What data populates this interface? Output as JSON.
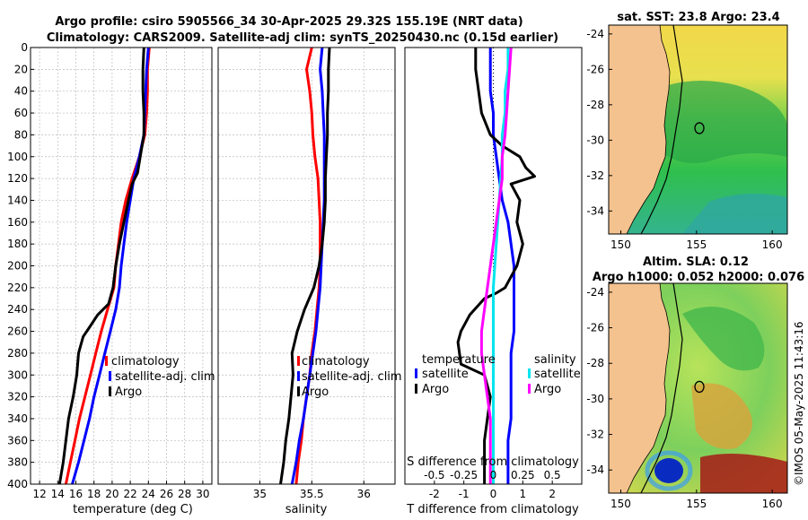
{
  "header": {
    "title_line1": "Argo profile: csiro 5905566_34 30-Apr-2025 29.32S 155.19E (NRT data)",
    "title_line2": "Climatology: CARS2009. Satellite-adj clim: synTS_20250430.nc (0.15d earlier)"
  },
  "colors": {
    "climatology": "#ff0000",
    "satellite": "#0000ff",
    "argo": "#000000",
    "sat_salinity": "#00e5ee",
    "argo_salinity": "#ff00ff"
  },
  "chart_data": [
    {
      "type": "line",
      "name": "temperature-profile",
      "xlabel": "temperature (deg C)",
      "ylabel": "",
      "xlim": [
        11,
        31
      ],
      "ylim": [
        400,
        0
      ],
      "xticks": [
        12,
        14,
        16,
        18,
        20,
        22,
        24,
        26,
        28,
        30
      ],
      "yticks": [
        0,
        20,
        40,
        60,
        80,
        100,
        120,
        140,
        160,
        180,
        200,
        220,
        240,
        260,
        280,
        300,
        320,
        340,
        360,
        380,
        400
      ],
      "series": [
        {
          "name": "climatology",
          "color": "#ff0000",
          "points": [
            [
              24.1,
              0
            ],
            [
              23.9,
              20
            ],
            [
              23.9,
              40
            ],
            [
              23.8,
              60
            ],
            [
              23.6,
              80
            ],
            [
              23,
              100
            ],
            [
              22.2,
              120
            ],
            [
              21.5,
              140
            ],
            [
              21,
              160
            ],
            [
              20.7,
              180
            ],
            [
              20.4,
              200
            ],
            [
              20.2,
              220
            ],
            [
              19.5,
              240
            ],
            [
              18.8,
              260
            ],
            [
              18.2,
              280
            ],
            [
              17.6,
              300
            ],
            [
              17,
              320
            ],
            [
              16.4,
              340
            ],
            [
              15.9,
              360
            ],
            [
              15.4,
              380
            ],
            [
              14.9,
              400
            ]
          ]
        },
        {
          "name": "satellite-adj. clim",
          "color": "#0000ff",
          "points": [
            [
              24,
              0
            ],
            [
              23.8,
              20
            ],
            [
              23.7,
              40
            ],
            [
              23.6,
              60
            ],
            [
              23.5,
              80
            ],
            [
              23,
              100
            ],
            [
              22.4,
              120
            ],
            [
              22,
              140
            ],
            [
              21.6,
              160
            ],
            [
              21.3,
              180
            ],
            [
              21,
              200
            ],
            [
              20.8,
              220
            ],
            [
              20.4,
              240
            ],
            [
              19.8,
              260
            ],
            [
              19.2,
              280
            ],
            [
              18.6,
              300
            ],
            [
              18,
              320
            ],
            [
              17.5,
              340
            ],
            [
              16.9,
              360
            ],
            [
              16.3,
              380
            ],
            [
              15.6,
              400
            ]
          ]
        },
        {
          "name": "Argo",
          "color": "#000000",
          "points": [
            [
              23.5,
              0
            ],
            [
              23.4,
              20
            ],
            [
              23.4,
              40
            ],
            [
              23.5,
              60
            ],
            [
              23.5,
              80
            ],
            [
              23.1,
              100
            ],
            [
              22.8,
              115
            ],
            [
              22.2,
              125
            ],
            [
              21.8,
              140
            ],
            [
              21.3,
              160
            ],
            [
              20.8,
              180
            ],
            [
              20.4,
              200
            ],
            [
              20.1,
              220
            ],
            [
              19.6,
              235
            ],
            [
              18.4,
              245
            ],
            [
              17.6,
              255
            ],
            [
              16.8,
              265
            ],
            [
              16.3,
              280
            ],
            [
              16.1,
              300
            ],
            [
              15.7,
              320
            ],
            [
              15.2,
              340
            ],
            [
              14.9,
              360
            ],
            [
              14.6,
              380
            ],
            [
              14.2,
              400
            ]
          ]
        }
      ],
      "legend": [
        "climatology",
        "satellite-adj. clim",
        "Argo"
      ]
    },
    {
      "type": "line",
      "name": "salinity-profile",
      "xlabel": "salinity",
      "ylabel": "",
      "xlim": [
        34.6,
        36.3
      ],
      "ylim": [
        400,
        0
      ],
      "xticks": [
        35,
        35.5,
        36
      ],
      "series": [
        {
          "name": "climatology",
          "color": "#ff0000",
          "points": [
            [
              35.5,
              0
            ],
            [
              35.45,
              20
            ],
            [
              35.48,
              40
            ],
            [
              35.5,
              60
            ],
            [
              35.51,
              80
            ],
            [
              35.53,
              100
            ],
            [
              35.56,
              120
            ],
            [
              35.57,
              140
            ],
            [
              35.58,
              160
            ],
            [
              35.58,
              180
            ],
            [
              35.58,
              200
            ],
            [
              35.57,
              220
            ],
            [
              35.55,
              240
            ],
            [
              35.53,
              260
            ],
            [
              35.5,
              280
            ],
            [
              35.48,
              300
            ],
            [
              35.45,
              320
            ],
            [
              35.42,
              340
            ],
            [
              35.4,
              360
            ],
            [
              35.37,
              380
            ],
            [
              35.35,
              400
            ]
          ]
        },
        {
          "name": "satellite-adj. clim",
          "color": "#0000ff",
          "points": [
            [
              35.6,
              0
            ],
            [
              35.58,
              20
            ],
            [
              35.6,
              40
            ],
            [
              35.61,
              60
            ],
            [
              35.62,
              80
            ],
            [
              35.62,
              100
            ],
            [
              35.62,
              120
            ],
            [
              35.62,
              140
            ],
            [
              35.61,
              160
            ],
            [
              35.6,
              180
            ],
            [
              35.59,
              200
            ],
            [
              35.58,
              220
            ],
            [
              35.56,
              240
            ],
            [
              35.54,
              260
            ],
            [
              35.51,
              280
            ],
            [
              35.48,
              300
            ],
            [
              35.45,
              320
            ],
            [
              35.42,
              340
            ],
            [
              35.38,
              360
            ],
            [
              35.35,
              380
            ],
            [
              35.31,
              400
            ]
          ]
        },
        {
          "name": "Argo",
          "color": "#000000",
          "points": [
            [
              35.67,
              0
            ],
            [
              35.66,
              20
            ],
            [
              35.66,
              40
            ],
            [
              35.65,
              60
            ],
            [
              35.65,
              80
            ],
            [
              35.64,
              100
            ],
            [
              35.63,
              120
            ],
            [
              35.63,
              140
            ],
            [
              35.62,
              160
            ],
            [
              35.6,
              180
            ],
            [
              35.57,
              200
            ],
            [
              35.52,
              220
            ],
            [
              35.43,
              240
            ],
            [
              35.36,
              260
            ],
            [
              35.31,
              280
            ],
            [
              35.32,
              300
            ],
            [
              35.3,
              320
            ],
            [
              35.28,
              340
            ],
            [
              35.25,
              360
            ],
            [
              35.23,
              380
            ],
            [
              35.2,
              400
            ]
          ]
        }
      ],
      "legend": [
        "climatology",
        "satellite-adj. clim",
        "Argo"
      ]
    },
    {
      "type": "line",
      "name": "difference-profile",
      "xlabel": "T difference from climatology",
      "xlabel_top": "S difference from climatology",
      "xlim": [
        -3,
        3
      ],
      "ylim": [
        400,
        0
      ],
      "xticks": [
        -2,
        -1,
        0,
        1,
        2
      ],
      "s_ticks": [
        {
          "label": "-0.5",
          "t_pos": -2
        },
        {
          "label": "-0.25",
          "t_pos": -1
        },
        {
          "label": "0",
          "t_pos": 0
        },
        {
          "label": "0.25",
          "t_pos": 1
        },
        {
          "label": "0.5",
          "t_pos": 2
        }
      ],
      "series": [
        {
          "name": "temperature satellite",
          "color": "#0000ff",
          "points": [
            [
              -0.1,
              0
            ],
            [
              -0.1,
              20
            ],
            [
              -0.1,
              40
            ],
            [
              0,
              60
            ],
            [
              0,
              80
            ],
            [
              0.1,
              100
            ],
            [
              0.2,
              120
            ],
            [
              0.3,
              140
            ],
            [
              0.5,
              160
            ],
            [
              0.6,
              180
            ],
            [
              0.7,
              200
            ],
            [
              0.7,
              220
            ],
            [
              0.7,
              240
            ],
            [
              0.7,
              260
            ],
            [
              0.6,
              280
            ],
            [
              0.6,
              300
            ],
            [
              0.6,
              320
            ],
            [
              0.6,
              340
            ],
            [
              0.5,
              360
            ],
            [
              0.5,
              380
            ],
            [
              0.5,
              400
            ]
          ]
        },
        {
          "name": "temperature Argo",
          "color": "#000000",
          "points": [
            [
              -0.6,
              0
            ],
            [
              -0.6,
              20
            ],
            [
              -0.5,
              40
            ],
            [
              -0.4,
              60
            ],
            [
              -0.1,
              80
            ],
            [
              0.3,
              90
            ],
            [
              0.9,
              100
            ],
            [
              1.1,
              110
            ],
            [
              1.4,
              118
            ],
            [
              0.6,
              125
            ],
            [
              0.9,
              140
            ],
            [
              0.8,
              160
            ],
            [
              1.0,
              180
            ],
            [
              0.8,
              200
            ],
            [
              0.6,
              210
            ],
            [
              0.4,
              220
            ],
            [
              0.1,
              225
            ],
            [
              -0.3,
              230
            ],
            [
              -0.8,
              245
            ],
            [
              -1.1,
              260
            ],
            [
              -1.2,
              270
            ],
            [
              -1.1,
              290
            ],
            [
              -0.3,
              300
            ],
            [
              -0.1,
              320
            ],
            [
              -0.2,
              340
            ],
            [
              -0.3,
              360
            ],
            [
              -0.3,
              380
            ],
            [
              -0.3,
              400
            ]
          ]
        },
        {
          "name": "salinity satellite",
          "color": "#00e5ee",
          "points": [
            [
              0.5,
              0
            ],
            [
              0.5,
              20
            ],
            [
              0.4,
              40
            ],
            [
              0.4,
              60
            ],
            [
              0.3,
              80
            ],
            [
              0.3,
              100
            ],
            [
              0.25,
              120
            ],
            [
              0.2,
              140
            ],
            [
              0.15,
              160
            ],
            [
              0.1,
              180
            ],
            [
              0.05,
              200
            ],
            [
              0,
              220
            ],
            [
              0,
              240
            ],
            [
              0,
              260
            ],
            [
              0,
              280
            ],
            [
              0,
              300
            ],
            [
              0,
              320
            ],
            [
              0,
              340
            ],
            [
              0,
              360
            ],
            [
              0,
              380
            ],
            [
              0,
              400
            ]
          ]
        },
        {
          "name": "salinity Argo",
          "color": "#ff00ff",
          "points": [
            [
              0.6,
              0
            ],
            [
              0.55,
              20
            ],
            [
              0.5,
              40
            ],
            [
              0.45,
              60
            ],
            [
              0.4,
              80
            ],
            [
              0.3,
              100
            ],
            [
              0.3,
              120
            ],
            [
              0.2,
              140
            ],
            [
              0.1,
              160
            ],
            [
              0.0,
              180
            ],
            [
              -0.1,
              200
            ],
            [
              -0.2,
              220
            ],
            [
              -0.3,
              240
            ],
            [
              -0.4,
              260
            ],
            [
              -0.4,
              280
            ],
            [
              -0.3,
              300
            ],
            [
              -0.2,
              320
            ],
            [
              -0.1,
              340
            ],
            [
              -0.1,
              360
            ],
            [
              -0.1,
              380
            ],
            [
              -0.1,
              400
            ]
          ]
        }
      ],
      "legend": {
        "temperature_title": "temperature",
        "salinity_title": "salinity",
        "items": [
          "satellite",
          "Argo",
          "satellite",
          "Argo"
        ]
      }
    },
    {
      "type": "heatmap",
      "name": "sst-map",
      "title": "sat. SST: 23.8 Argo: 23.4",
      "xlim": [
        149.2,
        161
      ],
      "ylim": [
        -35.3,
        -23.5
      ],
      "xticks": [
        150,
        155,
        160
      ],
      "yticks": [
        -24,
        -26,
        -28,
        -30,
        -32,
        -34
      ],
      "argo_position": {
        "lon": 155.19,
        "lat": -29.32
      }
    },
    {
      "type": "heatmap",
      "name": "sla-map",
      "title_line1": "Altim. SLA: 0.12",
      "title_line2": "Argo h1000: 0.052 h2000: 0.076",
      "xlim": [
        149.2,
        161
      ],
      "ylim": [
        -35.3,
        -23.5
      ],
      "xticks": [
        150,
        155,
        160
      ],
      "yticks": [
        -24,
        -26,
        -28,
        -30,
        -32,
        -34
      ],
      "argo_position": {
        "lon": 155.19,
        "lat": -29.32
      }
    }
  ],
  "stamp": "©IMOS 05-May-2025 11:43:16"
}
